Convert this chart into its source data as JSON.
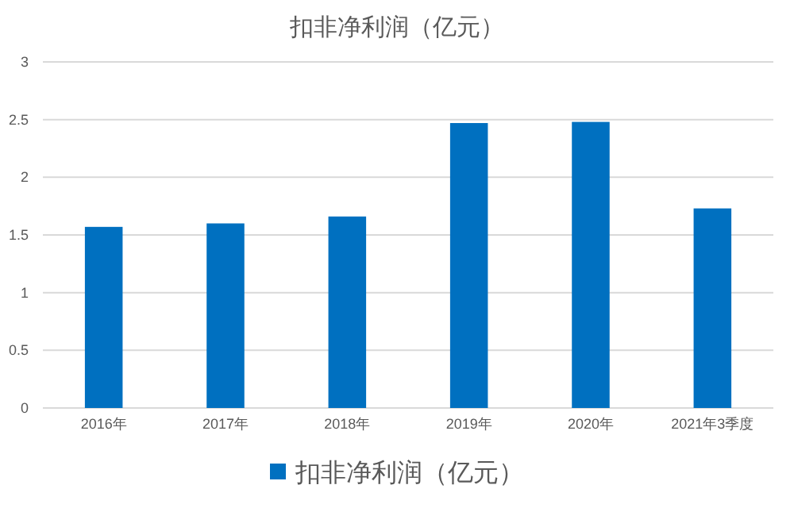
{
  "chart_data": {
    "type": "bar",
    "title": "扣非净利润（亿元）",
    "categories": [
      "2016年",
      "2017年",
      "2018年",
      "2019年",
      "2020年",
      "2021年3季度"
    ],
    "series": [
      {
        "name": "扣非净利润（亿元）",
        "color": "#0070c0",
        "values": [
          1.57,
          1.6,
          1.66,
          2.47,
          2.48,
          1.73
        ]
      }
    ],
    "ylim": [
      0,
      3
    ],
    "yticks": [
      0,
      0.5,
      1,
      1.5,
      2,
      2.5,
      3
    ],
    "grid": "y",
    "legend": "bottom"
  }
}
